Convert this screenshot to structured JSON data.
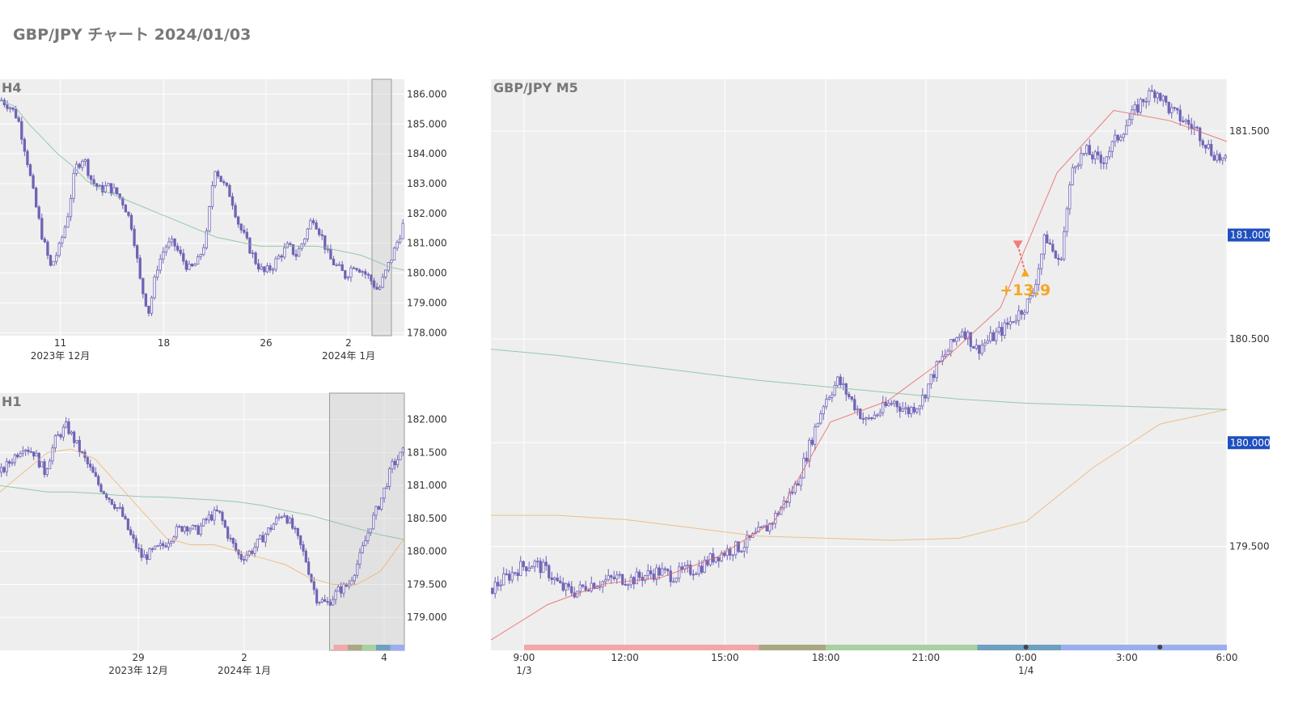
{
  "page": {
    "title": "GBP/JPY チャート 2024/01/03"
  },
  "colors": {
    "candle": "#6f63b5",
    "plot_bg": "#eeeeee",
    "grid": "#ffffff",
    "ma_short": "#e86060",
    "ma_mid": "#7cbf9a",
    "ma_long": "#f0b070",
    "price_tag_bg": "#1f4fbf",
    "trade_text": "#f5a623",
    "sessions": [
      "#f2a7a9",
      "#a9a884",
      "#a8d1a1",
      "#6ea0c0",
      "#9aaef0"
    ]
  },
  "chart_data": [
    {
      "id": "h4",
      "type": "candlestick",
      "title": "H4",
      "y_ticks": [
        "186.000",
        "185.000",
        "184.000",
        "183.000",
        "182.000",
        "181.000",
        "180.000",
        "179.000",
        "178.000"
      ],
      "ylim": [
        177.9,
        186.5
      ],
      "x_ticks": [
        {
          "label": "11",
          "sub": "2023年 12月",
          "pos": 0.149
        },
        {
          "label": "18",
          "sub": "",
          "pos": 0.405
        },
        {
          "label": "26",
          "sub": "",
          "pos": 0.658
        },
        {
          "label": "2",
          "sub": "2024年 1月",
          "pos": 0.862
        }
      ],
      "ma": [
        {
          "role": "mid",
          "points": [
            185.8,
            185.6,
            185.0,
            184.5,
            184.0,
            183.6,
            183.1,
            182.8,
            182.6,
            182.4,
            182.2,
            182.0,
            181.8,
            181.6,
            181.4,
            181.2,
            181.1,
            181.0,
            180.9,
            180.9,
            180.9,
            180.9,
            180.9,
            180.8,
            180.7,
            180.6,
            180.4,
            180.2,
            180.1
          ]
        },
        {
          "role": "short",
          "points": []
        }
      ],
      "closes": [
        185.8,
        185.6,
        185.2,
        184.0,
        182.5,
        181.2,
        180.2,
        180.8,
        181.8,
        183.5,
        183.9,
        183.1,
        182.8,
        182.9,
        182.7,
        182.3,
        181.5,
        179.6,
        178.7,
        180.2,
        180.9,
        181.0,
        180.5,
        180.1,
        180.4,
        181.2,
        183.6,
        183.0,
        182.6,
        181.6,
        181.0,
        180.4,
        180.0,
        180.2,
        180.6,
        180.9,
        180.6,
        181.2,
        181.9,
        181.3,
        180.5,
        180.2,
        179.9,
        180.3,
        180.1,
        179.8,
        179.4,
        180.1,
        180.8,
        181.6
      ],
      "highlight": [
        0.92,
        0.968
      ]
    },
    {
      "id": "h1",
      "type": "candlestick",
      "title": "H1",
      "y_ticks": [
        "182.000",
        "181.500",
        "181.000",
        "180.500",
        "180.000",
        "179.500",
        "179.000"
      ],
      "ylim": [
        178.5,
        182.4
      ],
      "x_ticks": [
        {
          "label": "29",
          "sub": "2023年 12月",
          "pos": 0.342
        },
        {
          "label": "2",
          "sub": "2024年 1月",
          "pos": 0.604
        },
        {
          "label": "4",
          "sub": "",
          "pos": 0.95
        }
      ],
      "ma": [
        {
          "role": "mid",
          "points": [
            181.0,
            180.95,
            180.9,
            180.9,
            180.88,
            180.85,
            180.83,
            180.82,
            180.8,
            180.78,
            180.75,
            180.7,
            180.62,
            180.55,
            180.45,
            180.35,
            180.25,
            180.18
          ]
        },
        {
          "role": "long",
          "points": [
            180.9,
            181.2,
            181.5,
            181.55,
            181.4,
            181.0,
            180.6,
            180.2,
            180.1,
            180.1,
            180.0,
            179.9,
            179.8,
            179.6,
            179.5,
            179.5,
            179.7,
            180.2
          ]
        }
      ],
      "closes": [
        181.2,
        181.4,
        181.6,
        181.5,
        181.2,
        181.7,
        181.9,
        181.6,
        181.3,
        181.0,
        180.8,
        180.6,
        180.2,
        179.9,
        180.0,
        180.1,
        180.3,
        180.4,
        180.3,
        180.5,
        180.6,
        180.2,
        179.9,
        180.0,
        180.2,
        180.4,
        180.6,
        180.3,
        179.9,
        179.3,
        179.2,
        179.4,
        179.5,
        179.9,
        180.4,
        180.8,
        181.3,
        181.5
      ],
      "highlight": [
        0.815,
        1.0
      ],
      "sessions_bar": [
        0.825,
        1.0
      ]
    },
    {
      "id": "m5",
      "type": "candlestick",
      "title": "GBP/JPY M5",
      "y_ticks": [
        "181.500",
        "181.000",
        "180.500",
        "180.000",
        "179.500"
      ],
      "ylim": [
        179.0,
        181.75
      ],
      "price_tags": [
        "181.000",
        "180.000"
      ],
      "x_ticks": [
        {
          "label": "9:00",
          "sub": "1/3",
          "pos": 0.045
        },
        {
          "label": "12:00",
          "sub": "",
          "pos": 0.182
        },
        {
          "label": "15:00",
          "sub": "",
          "pos": 0.318
        },
        {
          "label": "18:00",
          "sub": "",
          "pos": 0.455
        },
        {
          "label": "21:00",
          "sub": "",
          "pos": 0.591
        },
        {
          "label": "0:00",
          "sub": "1/4",
          "pos": 0.727
        },
        {
          "label": "3:00",
          "sub": "",
          "pos": 0.864
        },
        {
          "label": "6:00",
          "sub": "",
          "pos": 1.0
        }
      ],
      "ma": [
        {
          "role": "mid",
          "points": [
            180.45,
            180.42,
            180.38,
            180.34,
            180.3,
            180.27,
            180.24,
            180.21,
            180.19,
            180.18,
            180.17,
            180.16
          ]
        },
        {
          "role": "long",
          "points": [
            179.65,
            179.65,
            179.63,
            179.59,
            179.55,
            179.54,
            179.53,
            179.54,
            179.62,
            179.88,
            180.09,
            180.16
          ]
        },
        {
          "role": "short",
          "points": [
            179.05,
            179.22,
            179.32,
            179.35,
            179.45,
            179.62,
            180.1,
            180.2,
            180.4,
            180.65,
            181.3,
            181.6,
            181.55,
            181.45
          ]
        }
      ],
      "closes": [
        179.3,
        179.35,
        179.4,
        179.42,
        179.38,
        179.3,
        179.28,
        179.32,
        179.33,
        179.35,
        179.34,
        179.36,
        179.38,
        179.36,
        179.38,
        179.4,
        179.45,
        179.48,
        179.5,
        179.55,
        179.6,
        179.7,
        179.8,
        180.0,
        180.2,
        180.3,
        180.2,
        180.1,
        180.15,
        180.2,
        180.15,
        180.2,
        180.35,
        180.45,
        180.55,
        180.45,
        180.5,
        180.55,
        180.62,
        180.7,
        181.0,
        180.85,
        181.35,
        181.4,
        181.35,
        181.45,
        181.55,
        181.65,
        181.7,
        181.6,
        181.55,
        181.5,
        181.4,
        181.35
      ],
      "trade": {
        "label": "+13.9",
        "entry_pos": 0.716,
        "entry_price": 180.95,
        "exit_pos": 0.726,
        "exit_price": 180.82
      },
      "sessions_bar": [
        0.045,
        1.0
      ],
      "session_splits": [
        0.045,
        0.364,
        0.455,
        0.661,
        0.775,
        1.0
      ],
      "dots": [
        0.727,
        0.909
      ]
    }
  ]
}
